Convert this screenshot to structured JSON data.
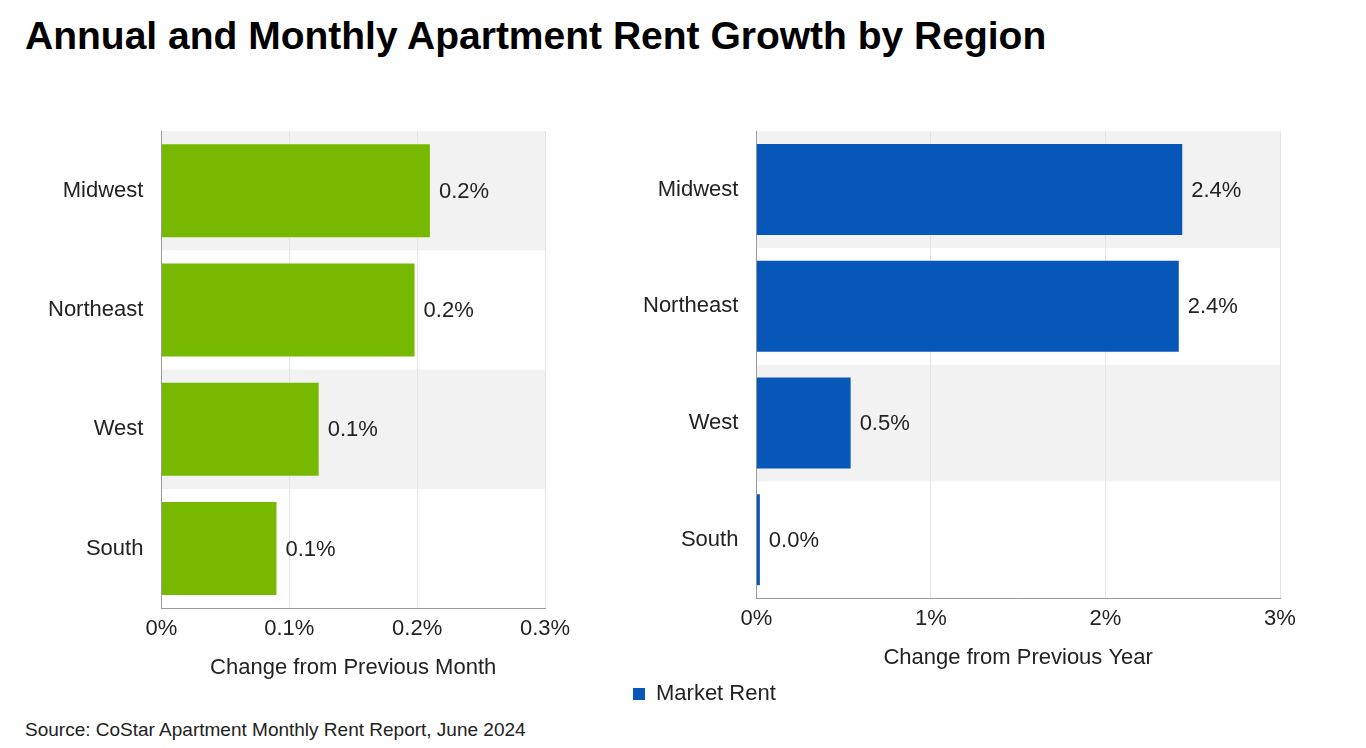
{
  "title": "Annual and Monthly Apartment Rent Growth by Region",
  "source": "Source: CoStar Apartment Monthly Rent Report, June 2024",
  "chart_data": [
    {
      "type": "bar",
      "orientation": "horizontal",
      "categories": [
        "Midwest",
        "Northeast",
        "West",
        "South"
      ],
      "values": [
        0.21,
        0.198,
        0.123,
        0.09
      ],
      "value_labels": [
        "0.2%",
        "0.2%",
        "0.1%",
        "0.1%"
      ],
      "color": "#76b900",
      "xlabel": "Change from Previous Month",
      "xlim": [
        0,
        0.3
      ],
      "xticks": [
        {
          "value": 0,
          "label": "0%"
        },
        {
          "value": 0.1,
          "label": "0.1%"
        },
        {
          "value": 0.2,
          "label": "0.2%"
        },
        {
          "value": 0.3,
          "label": "0.3%"
        }
      ],
      "grid": true,
      "data_labels": true
    },
    {
      "type": "bar",
      "orientation": "horizontal",
      "categories": [
        "Midwest",
        "Northeast",
        "West",
        "South"
      ],
      "series": [
        {
          "name": "Market Rent",
          "color": "#0757b8",
          "values": [
            2.44,
            2.42,
            0.54,
            0.02
          ],
          "value_labels": [
            "2.4%",
            "2.4%",
            "0.5%",
            "0.0%"
          ]
        }
      ],
      "xlabel": "Change from Previous Year",
      "xlim": [
        0,
        3
      ],
      "xticks": [
        {
          "value": 0,
          "label": "0%"
        },
        {
          "value": 1,
          "label": "1%"
        },
        {
          "value": 2,
          "label": "2%"
        },
        {
          "value": 3,
          "label": "3%"
        }
      ],
      "legend": "bottom",
      "grid": true,
      "data_labels": true
    }
  ]
}
